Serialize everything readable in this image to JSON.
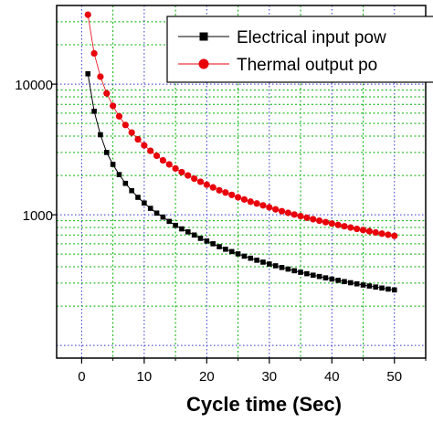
{
  "chart_data": {
    "type": "line",
    "title": "",
    "xlabel": "Cycle time (Sec)",
    "ylabel": "",
    "yscale": "log",
    "xlim": [
      -4,
      55
    ],
    "ylim": [
      80,
      40000
    ],
    "xticks": [
      0,
      10,
      20,
      30,
      40,
      50
    ],
    "xtick_labels": [
      "0",
      "10",
      "20",
      "30",
      "40",
      "50"
    ],
    "yticks": [
      1000,
      10000
    ],
    "ytick_labels": [
      "1000",
      "10000"
    ],
    "grid": true,
    "legend_position": "top-right",
    "series": [
      {
        "name": "Electrical input pow",
        "color": "#000000",
        "marker": "square",
        "x": [
          1,
          2,
          3,
          4,
          5,
          6,
          7,
          8,
          9,
          10,
          11,
          12,
          13,
          14,
          15,
          16,
          17,
          18,
          19,
          20,
          21,
          22,
          23,
          24,
          25,
          26,
          27,
          28,
          29,
          30,
          31,
          32,
          33,
          34,
          35,
          36,
          37,
          38,
          39,
          40,
          41,
          42,
          43,
          44,
          45,
          46,
          47,
          48,
          49,
          50
        ],
        "values": [
          12000,
          6200,
          4100,
          3000,
          2430,
          2030,
          1740,
          1530,
          1360,
          1230,
          1120,
          1030,
          960,
          890,
          830,
          780,
          740,
          700,
          660,
          630,
          600,
          570,
          545,
          523,
          502,
          482,
          465,
          449,
          434,
          420,
          407,
          395,
          384,
          373,
          363,
          354,
          345,
          337,
          329,
          322,
          315,
          308,
          302,
          296,
          290,
          285,
          280,
          275,
          270,
          266
        ]
      },
      {
        "name": "Thermal output po",
        "color": "#e8000b",
        "marker": "circle",
        "x": [
          1,
          2,
          3,
          4,
          5,
          6,
          7,
          8,
          9,
          10,
          11,
          12,
          13,
          14,
          15,
          16,
          17,
          18,
          19,
          20,
          21,
          22,
          23,
          24,
          25,
          26,
          27,
          28,
          29,
          30,
          31,
          32,
          33,
          34,
          35,
          36,
          37,
          38,
          39,
          40,
          41,
          42,
          43,
          44,
          45,
          46,
          47,
          48,
          49,
          50
        ],
        "values": [
          34000,
          17200,
          11400,
          8500,
          6820,
          5670,
          4870,
          4260,
          3780,
          3400,
          3090,
          2830,
          2610,
          2430,
          2260,
          2120,
          2000,
          1890,
          1790,
          1700,
          1620,
          1540,
          1480,
          1420,
          1360,
          1310,
          1260,
          1220,
          1180,
          1140,
          1100,
          1065,
          1035,
          1005,
          977,
          950,
          925,
          901,
          878,
          857,
          836,
          817,
          798,
          780,
          764,
          748,
          732,
          717,
          703,
          690
        ]
      }
    ]
  }
}
